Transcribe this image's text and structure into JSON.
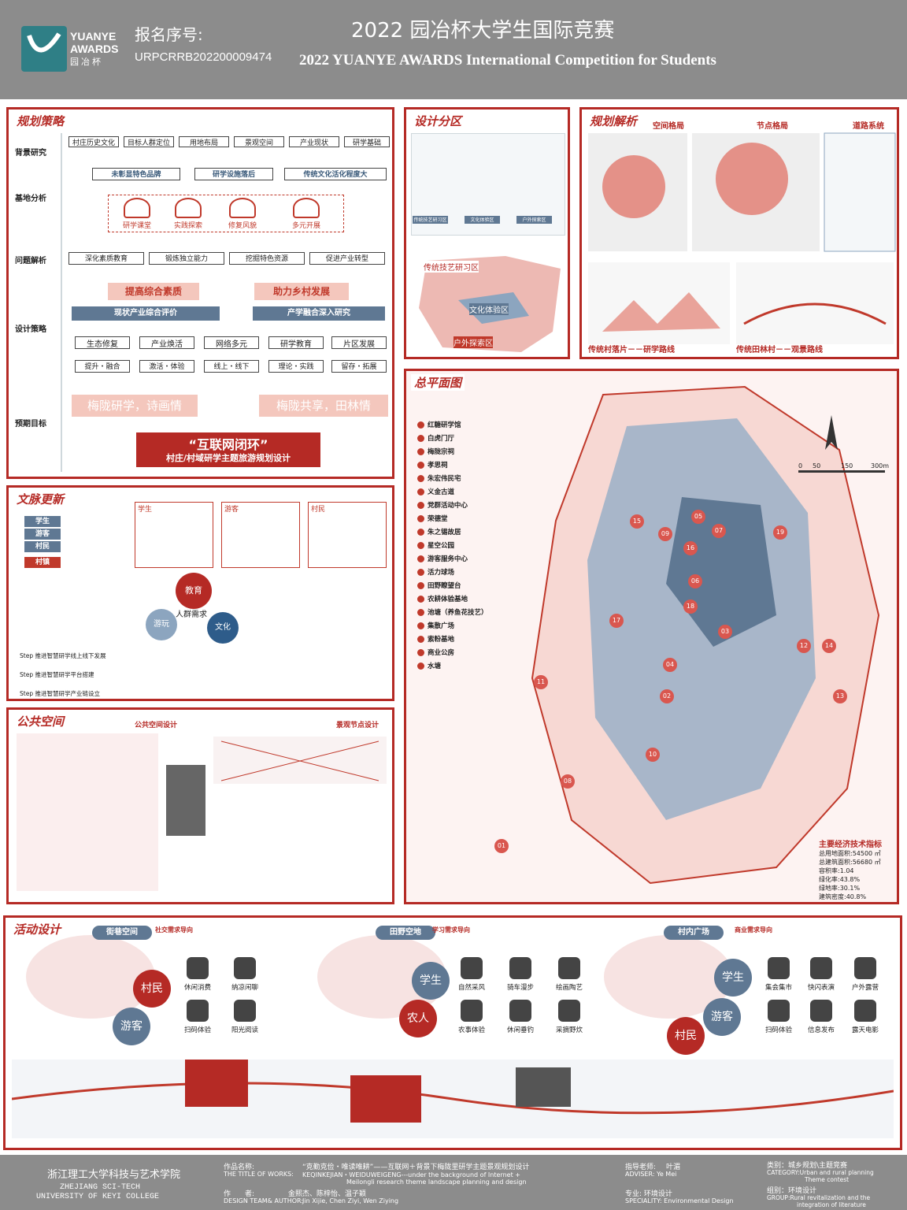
{
  "header": {
    "logo_en1": "YUANYE",
    "logo_en2": "AWARDS",
    "logo_cn": "园冶杯",
    "reg_label": "报名序号:",
    "reg_no": "URPCRRB202200009474",
    "title_cn": "2022 园冶杯大学生国际竞赛",
    "title_en": "2022 YUANYE AWARDS International Competition for  Students"
  },
  "strategy": {
    "title": "规划策略",
    "rows": [
      "背景研究",
      "基地分析",
      "问题解析",
      "设计策略",
      "预期目标"
    ],
    "bg_items": [
      "村庄历史文化",
      "目标人群定位",
      "用地布局",
      "景观空间",
      "产业现状",
      "研学基础"
    ],
    "analysis": [
      "未彰显特色品牌",
      "研学设施落后",
      "传统文化活化程度大"
    ],
    "icons": [
      "研学课堂",
      "实践探索",
      "修复风貌",
      "多元开展"
    ],
    "problems": [
      "深化素质教育",
      "锻炼独立能力",
      "挖掘特色资源",
      "促进产业转型"
    ],
    "pinks": [
      "提高综合素质",
      "助力乡村发展"
    ],
    "blues": [
      "现状产业综合评价",
      "产学融合深入研究"
    ],
    "row1": [
      "生态修复",
      "产业焕活",
      "网络多元",
      "研学教育",
      "片区发展"
    ],
    "row2": [
      "提升・融合",
      "激活・体验",
      "线上・线下",
      "理论・实践",
      "留存・拓展"
    ],
    "goals": [
      "梅陇研学，诗画情",
      "梅陇共享，田林情"
    ],
    "closing_title": "“互联网闭环”",
    "closing_sub": "村庄/村域研学主题旅游规划设计"
  },
  "zoning": {
    "title": "设计分区",
    "labels": [
      "传统技艺研习区",
      "文化体验区",
      "户外探索区"
    ],
    "tags": [
      "传统技艺研习区",
      "文化体验区",
      "户外探索区"
    ]
  },
  "analysis": {
    "title": "规划解析",
    "subs": [
      "空间格局",
      "节点格局",
      "道路系统"
    ],
    "caps": [
      "传统村落片－－研学路线",
      "传统田林村－－观景路线"
    ]
  },
  "plan": {
    "title": "总平面图",
    "legend": [
      "红糖研学馆",
      "白虎门厅",
      "梅陇宗祠",
      "孝思祠",
      "朱宏伟民宅",
      "义金古道",
      "党群活动中心",
      "荣德堂",
      "朱之锡故居",
      "星空公园",
      "游客服务中心",
      "活力球场",
      "田野瞭望台",
      "农耕体验基地",
      "池塘（养鱼花技艺）",
      "集散广场",
      "索粉基地",
      "商业公房",
      "水塘"
    ],
    "scale": [
      "0",
      "50",
      "150",
      "300m"
    ],
    "markers": [
      "01",
      "02",
      "03",
      "04",
      "05",
      "06",
      "07",
      "08",
      "09",
      "10",
      "11",
      "12",
      "13",
      "14",
      "15",
      "16",
      "17",
      "18",
      "19"
    ],
    "stats_title": "主要经济技术指标",
    "stats": [
      "总用地面积:54500 ㎡",
      "总建筑面积:56680 ㎡",
      "容积率:1.04",
      "绿化率:43.8%",
      "绿地率:30.1%",
      "建筑密度:40.8%"
    ]
  },
  "culture": {
    "title": "文脉更新",
    "roles": [
      "学生",
      "游客",
      "村民",
      "村镇"
    ],
    "groups": [
      "学生",
      "游客",
      "村民"
    ],
    "center": [
      "教育",
      "游玩",
      "文化"
    ],
    "center_lbl": "人群需求",
    "steps": [
      "Step 推进智慧研学线上线下发展",
      "Step 推进智慧研学平台搭建",
      "Step 推进智慧研学产业链设立"
    ]
  },
  "public": {
    "title": "公共空间",
    "sub1": "公共空间设计",
    "sub2": "景观节点设计"
  },
  "activity": {
    "title": "活动设计",
    "zones": [
      "街巷空间",
      "田野空地",
      "村内广场"
    ],
    "zone_tags": [
      "社交需求导向",
      "学习需求导向",
      "商业需求导向"
    ],
    "roles": [
      "村民",
      "游客",
      "学生",
      "农人",
      "学生",
      "游客",
      "村民"
    ],
    "a1": [
      "休闲消费",
      "纳凉闲聊",
      "扫码体验",
      "阳光阅读"
    ],
    "a2": [
      "自然采风",
      "骑车漫步",
      "绘画陶艺",
      "农事体验",
      "休闲垂钓",
      "采摘野炊"
    ],
    "a3": [
      "集会集市",
      "快闪表演",
      "户外露营",
      "扫码体验",
      "信息发布",
      "露天电影"
    ]
  },
  "footer": {
    "school_cn": "浙江理工大学科技与艺术学院",
    "school_en1": "ZHEJIANG SCI-TECH",
    "school_en2": "UNIVERSITY OF KEYI COLLEGE",
    "work_label": "作品名称:",
    "work_cn": "“克勤克俭・唯读唯耕”——互联网＋背景下梅陇里研学主题景观规划设计",
    "work_en_label": "THE TITLE OF WORKS:",
    "work_en": "KEQINKEJIAN・WEIDUWEIGENG---under the background of Internet +",
    "work_en2": "Meilongli research theme landscape planning and design",
    "author_label": "作　　者:",
    "author": "金熙杰、陈梓怡、温子颖",
    "author_en_label": "DESIGN TEAM& AUTHOR:",
    "author_en": "Jin Xijie, Chen Ziyi, Wen Ziying",
    "adviser_label": "指导老师:",
    "adviser": "叶湄",
    "adviser_en": "ADVISER:  Ye Mei",
    "spec": "专业:  环境设计",
    "spec_en": "SPECIALITY: Environmental Design",
    "cat": "类别：城乡规划\\主题竞赛",
    "cat_en": "CATEGORY:Urban and rural planning",
    "cat_en2": "Theme contest",
    "group": "组别：环境设计",
    "group_en": "GROUP:Rural revitalization and the",
    "group_en2": "integration of literature"
  },
  "colors": {
    "accent": "#b52a25",
    "blue": "#5f7893",
    "pink": "#f4c7bd",
    "header": "#8c8c8c"
  }
}
